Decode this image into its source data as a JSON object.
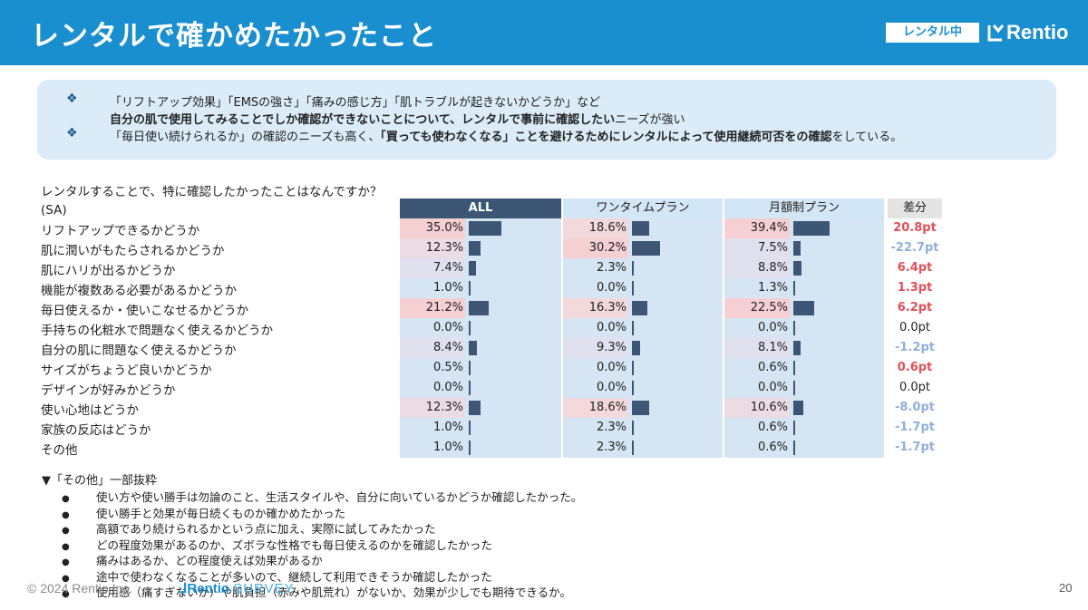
{
  "header": {
    "title": "レンタルで確かめたかったこと",
    "badge": "レンタル中",
    "logo_text": "Rentio",
    "brand_color": "#1a8fd0"
  },
  "summary": {
    "bullet_icon": "diamond-bullet-icon",
    "line1": "「リフトアップ効果」「EMSの強さ」「痛みの感じ方」「肌トラブルが起きないかどうか」など",
    "line2_bold": "自分の肌で使用してみることでしか確認ができないことについて、レンタルで事前に確認したい",
    "line2_rest": "ニーズが強い",
    "line3_a": "「毎日使い続けられるか」の確認のニーズも高く、",
    "line3_bold": "「買っても使わなくなる」ことを避けるためにレンタルによって使用継続可否をの確認",
    "line3_rest": "をしている。"
  },
  "question": "レンタルすることで、特に確認したかったことはなんですか？",
  "sa_label": "(SA)",
  "chart_data": {
    "type": "table",
    "columns": [
      "ALL",
      "ワンタイムプラン",
      "月額制プラン",
      "差分"
    ],
    "rows": [
      {
        "label": "リフトアップできるかどうか",
        "all": "35.0%",
        "onetime": "18.6%",
        "monthly": "39.4%",
        "diff": "20.8pt",
        "all_v": 35.0,
        "onetime_v": 18.6,
        "monthly_v": 39.4,
        "diff_v": 20.8
      },
      {
        "label": "肌に潤いがもたらされるかどうか",
        "all": "12.3%",
        "onetime": "30.2%",
        "monthly": "7.5%",
        "diff": "-22.7pt",
        "all_v": 12.3,
        "onetime_v": 30.2,
        "monthly_v": 7.5,
        "diff_v": -22.7
      },
      {
        "label": "肌にハリが出るかどうか",
        "all": "7.4%",
        "onetime": "2.3%",
        "monthly": "8.8%",
        "diff": "6.4pt",
        "all_v": 7.4,
        "onetime_v": 2.3,
        "monthly_v": 8.8,
        "diff_v": 6.4
      },
      {
        "label": "機能が複数ある必要があるかどうか",
        "all": "1.0%",
        "onetime": "0.0%",
        "monthly": "1.3%",
        "diff": "1.3pt",
        "all_v": 1.0,
        "onetime_v": 0.0,
        "monthly_v": 1.3,
        "diff_v": 1.3
      },
      {
        "label": "毎日使えるか・使いこなせるかどうか",
        "all": "21.2%",
        "onetime": "16.3%",
        "monthly": "22.5%",
        "diff": "6.2pt",
        "all_v": 21.2,
        "onetime_v": 16.3,
        "monthly_v": 22.5,
        "diff_v": 6.2
      },
      {
        "label": "手持ちの化粧水で問題なく使えるかどうか",
        "all": "0.0%",
        "onetime": "0.0%",
        "monthly": "0.0%",
        "diff": "0.0pt",
        "all_v": 0.0,
        "onetime_v": 0.0,
        "monthly_v": 0.0,
        "diff_v": 0.0
      },
      {
        "label": "自分の肌に問題なく使えるかどうか",
        "all": "8.4%",
        "onetime": "9.3%",
        "monthly": "8.1%",
        "diff": "-1.2pt",
        "all_v": 8.4,
        "onetime_v": 9.3,
        "monthly_v": 8.1,
        "diff_v": -1.2
      },
      {
        "label": "サイズがちょうど良いかどうか",
        "all": "0.5%",
        "onetime": "0.0%",
        "monthly": "0.6%",
        "diff": "0.6pt",
        "all_v": 0.5,
        "onetime_v": 0.0,
        "monthly_v": 0.6,
        "diff_v": 0.6
      },
      {
        "label": "デザインが好みかどうか",
        "all": "0.0%",
        "onetime": "0.0%",
        "monthly": "0.0%",
        "diff": "0.0pt",
        "all_v": 0.0,
        "onetime_v": 0.0,
        "monthly_v": 0.0,
        "diff_v": 0.0
      },
      {
        "label": "使い心地はどうか",
        "all": "12.3%",
        "onetime": "18.6%",
        "monthly": "10.6%",
        "diff": "-8.0pt",
        "all_v": 12.3,
        "onetime_v": 18.6,
        "monthly_v": 10.6,
        "diff_v": -8.0
      },
      {
        "label": "家族の反応はどうか",
        "all": "1.0%",
        "onetime": "2.3%",
        "monthly": "0.6%",
        "diff": "-1.7pt",
        "all_v": 1.0,
        "onetime_v": 2.3,
        "monthly_v": 0.6,
        "diff_v": -1.7
      },
      {
        "label": "その他",
        "all": "1.0%",
        "onetime": "2.3%",
        "monthly": "0.6%",
        "diff": "-1.7pt",
        "all_v": 1.0,
        "onetime_v": 2.3,
        "monthly_v": 0.6,
        "diff_v": -1.7
      }
    ],
    "colors": {
      "header_all": "#3e5675",
      "header_plan": "#d3e6f5",
      "header_diff": "#e4e4e4",
      "bar": "#3e5675",
      "positive": "#e0505a",
      "negative": "#8fb0d8",
      "neutral": "#222222"
    }
  },
  "others": {
    "title": "▼「その他」一部抜粋",
    "items": [
      "使い方や使い勝手は勿論のこと、生活スタイルや、自分に向いているかどうか確認したかった。",
      "使い勝手と効果が毎日続くものか確かめたかった",
      "高額であり続けられるかという点に加え、実際に試してみたかった",
      "どの程度効果があるのか、ズボラな性格でも毎日使えるのかを確認したかった",
      "痛みはあるか、どの程度使えば効果があるか",
      "途中で使わなくなることが多いので、継続して利用できそうか確認したかった",
      "使用感（痛すぎないか）や肌負担（赤みや肌荒れ）がないか、効果が少しでも期待できるか。"
    ]
  },
  "footer": {
    "copyright": "© 2024 Rentio Inc.",
    "logo_text": "Rentio",
    "logo_survey": "SURVEY",
    "page": "20"
  }
}
